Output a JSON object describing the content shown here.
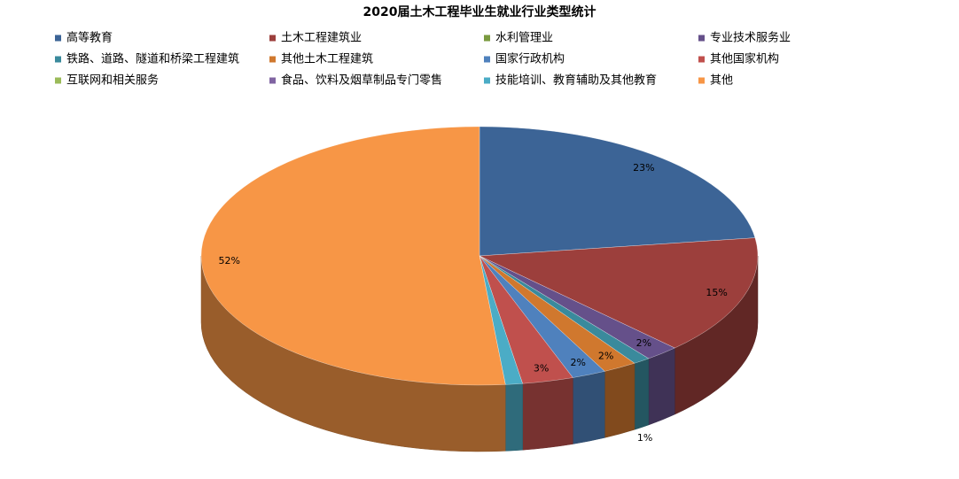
{
  "chart_data": {
    "type": "pie3d",
    "title": "2020届土木工程毕业生就业行业类型统计",
    "categories": [
      "高等教育",
      "土木工程建筑业",
      "水利管理业",
      "专业技术服务业",
      "铁路、道路、隧道和桥梁工程建筑",
      "其他土木工程建筑",
      "国家行政机构",
      "其他国家机构",
      "互联网和相关服务",
      "食品、饮料及烟草制品专门零售",
      "技能培训、教育辅助及其他教育",
      "其他"
    ],
    "values": [
      23,
      15,
      0,
      2,
      1,
      2,
      2,
      3,
      0,
      0,
      1,
      52
    ],
    "value_labels": [
      "23%",
      "15%",
      null,
      "2%",
      "1%",
      "2%",
      "2%",
      "3%",
      null,
      null,
      null,
      "52%"
    ],
    "colors": [
      "#3c6496",
      "#9c3f3c",
      "#7a9a3f",
      "#65508a",
      "#3a8a9c",
      "#d0782e",
      "#4f81bd",
      "#c0504d",
      "#9bbb59",
      "#8064a2",
      "#4bacc6",
      "#f79646"
    ],
    "legend": "top"
  }
}
